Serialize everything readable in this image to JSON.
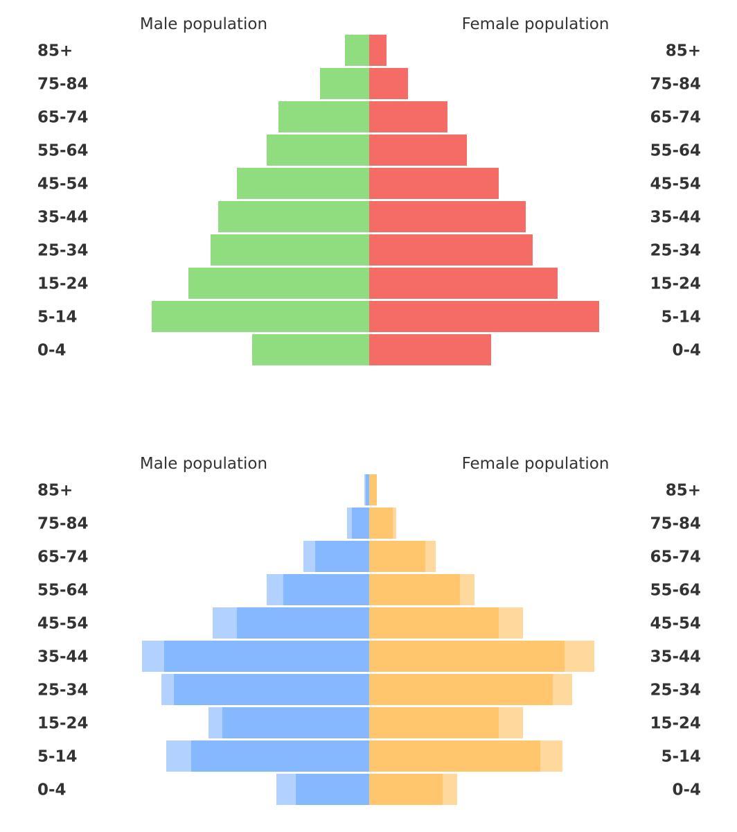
{
  "chart_data": [
    {
      "type": "bar",
      "orientation": "horizontal",
      "layout": "population-pyramid",
      "header_left": "Male population",
      "header_right": "Female population",
      "categories": [
        "85+",
        "75-84",
        "65-74",
        "55-64",
        "45-54",
        "35-44",
        "25-34",
        "15-24",
        "5-14",
        "0-4"
      ],
      "series": [
        {
          "side": "left",
          "color": "#90dd7f",
          "values": [
            35,
            71,
            131,
            148,
            191,
            218,
            229,
            261,
            314,
            169
          ]
        },
        {
          "side": "right",
          "color": "#f56b66",
          "values": [
            25,
            56,
            113,
            141,
            187,
            226,
            236,
            272,
            332,
            176
          ]
        }
      ]
    },
    {
      "type": "bar",
      "orientation": "horizontal",
      "layout": "population-pyramid-overlay",
      "header_left": "Male population",
      "header_right": "Female population",
      "categories": [
        "85+",
        "75-84",
        "65-74",
        "55-64",
        "45-54",
        "35-44",
        "25-34",
        "15-24",
        "5-14",
        "0-4"
      ],
      "series": [
        {
          "side": "left",
          "layer": "outer",
          "color": "#b2d1ff",
          "values": [
            7,
            32,
            95,
            148,
            226,
            328,
            300,
            232,
            293,
            134
          ]
        },
        {
          "side": "left",
          "layer": "inner",
          "color": "#85b8ff",
          "values": [
            5,
            25,
            78,
            124,
            191,
            296,
            282,
            212,
            257,
            106
          ]
        },
        {
          "side": "right",
          "layer": "outer",
          "color": "#ffd89e",
          "values": [
            11,
            39,
            96,
            152,
            222,
            325,
            293,
            222,
            279,
            127
          ]
        },
        {
          "side": "right",
          "layer": "inner",
          "color": "#ffc66e",
          "values": [
            11,
            34,
            81,
            131,
            187,
            282,
            265,
            187,
            247,
            106
          ]
        }
      ]
    }
  ]
}
